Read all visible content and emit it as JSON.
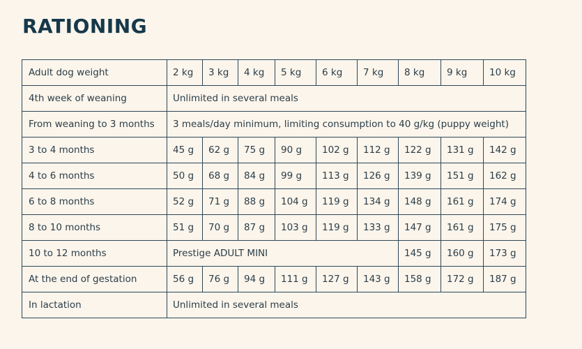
{
  "title": "RATIONING",
  "table": {
    "header": {
      "label": "Adult dog weight",
      "weights": [
        "2 kg",
        "3 kg",
        "4 kg",
        "5 kg",
        "6 kg",
        "7 kg",
        "8 kg",
        "9 kg",
        "10 kg"
      ]
    },
    "rows": {
      "weaning_4th_week": {
        "label": "4th week of weaning",
        "text": "Unlimited in several meals"
      },
      "weaning_to_3m": {
        "label": "From weaning to 3 months",
        "text": "3 meals/day minimum, limiting consumption to 40 g/kg (puppy weight)"
      },
      "m3_4": {
        "label": "3 to 4 months",
        "values": [
          "45 g",
          "62 g",
          "75 g",
          "90 g",
          "102 g",
          "112 g",
          "122 g",
          "131 g",
          "142 g"
        ]
      },
      "m4_6": {
        "label": "4 to 6 months",
        "values": [
          "50 g",
          "68 g",
          "84 g",
          "99 g",
          "113 g",
          "126 g",
          "139 g",
          "151 g",
          "162 g"
        ]
      },
      "m6_8": {
        "label": "6 to 8 months",
        "values": [
          "52 g",
          "71 g",
          "88 g",
          "104 g",
          "119 g",
          "134 g",
          "148 g",
          "161 g",
          "174 g"
        ]
      },
      "m8_10": {
        "label": "8 to 10 months",
        "values": [
          "51 g",
          "70 g",
          "87 g",
          "103 g",
          "119 g",
          "133 g",
          "147 g",
          "161 g",
          "175 g"
        ]
      },
      "m10_12": {
        "label": "10 to 12 months",
        "text": "Prestige ADULT MINI",
        "values": [
          "145 g",
          "160 g",
          "173 g"
        ]
      },
      "gestation": {
        "label": "At the end of gestation",
        "values": [
          "56 g",
          "76 g",
          "94 g",
          "111 g",
          "127 g",
          "143 g",
          "158 g",
          "172 g",
          "187 g"
        ]
      },
      "lactation": {
        "label": "In lactation",
        "text": "Unlimited in several meals"
      }
    }
  }
}
